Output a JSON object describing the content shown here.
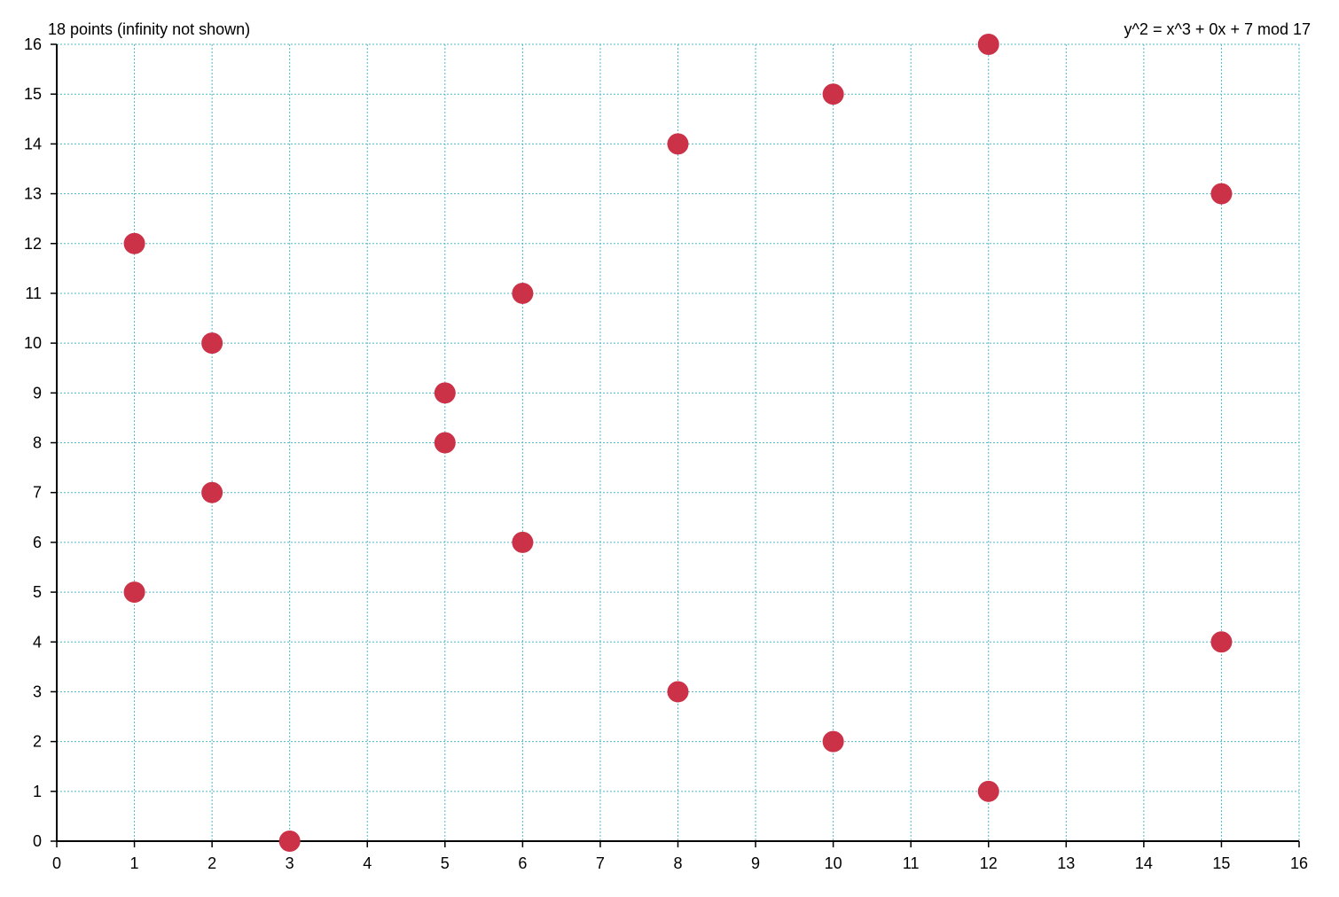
{
  "chart_data": {
    "type": "scatter",
    "title_left": "18 points (infinity not shown)",
    "title_right": "y^2 = x^3 + 0x + 7 mod 17",
    "xlabel": "",
    "ylabel": "",
    "xlim": [
      0,
      16
    ],
    "ylim": [
      0,
      16
    ],
    "x_ticks": [
      0,
      1,
      2,
      3,
      4,
      5,
      6,
      7,
      8,
      9,
      10,
      11,
      12,
      13,
      14,
      15,
      16
    ],
    "y_ticks": [
      0,
      1,
      2,
      3,
      4,
      5,
      6,
      7,
      8,
      9,
      10,
      11,
      12,
      13,
      14,
      15,
      16
    ],
    "grid": true,
    "point_color": "#cc3247",
    "grid_color": "#4fb8c9",
    "points": [
      {
        "x": 1,
        "y": 5
      },
      {
        "x": 1,
        "y": 12
      },
      {
        "x": 2,
        "y": 7
      },
      {
        "x": 2,
        "y": 10
      },
      {
        "x": 3,
        "y": 0
      },
      {
        "x": 5,
        "y": 8
      },
      {
        "x": 5,
        "y": 9
      },
      {
        "x": 6,
        "y": 6
      },
      {
        "x": 6,
        "y": 11
      },
      {
        "x": 8,
        "y": 3
      },
      {
        "x": 8,
        "y": 14
      },
      {
        "x": 10,
        "y": 2
      },
      {
        "x": 10,
        "y": 15
      },
      {
        "x": 12,
        "y": 1
      },
      {
        "x": 12,
        "y": 16
      },
      {
        "x": 15,
        "y": 4
      },
      {
        "x": 15,
        "y": 13
      }
    ]
  }
}
